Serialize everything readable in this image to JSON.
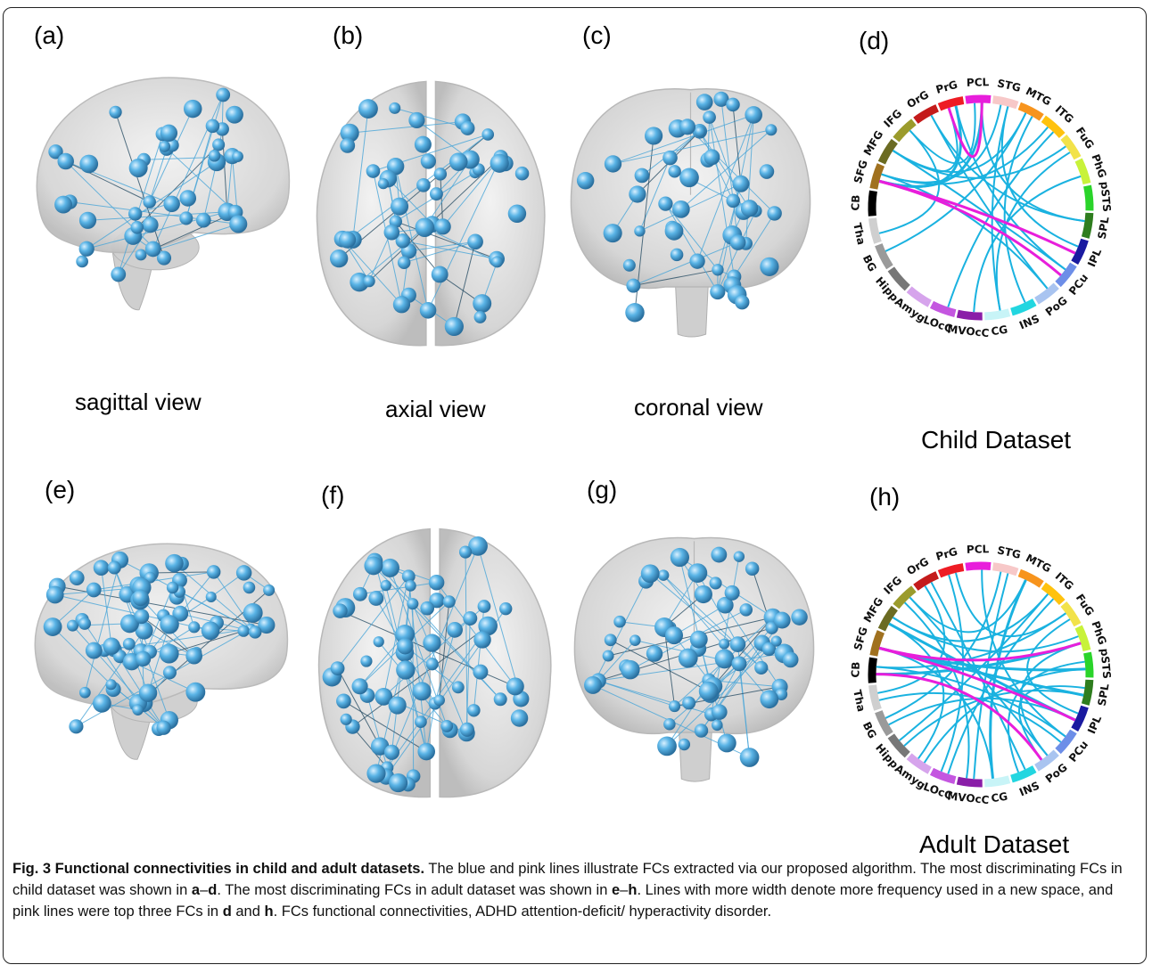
{
  "panels": {
    "a": "(a)",
    "b": "(b)",
    "c": "(c)",
    "d": "(d)",
    "e": "(e)",
    "f": "(f)",
    "g": "(g)",
    "h": "(h)"
  },
  "views": {
    "sagittal": "sagittal view",
    "axial": "axial view",
    "coronal": "coronal view"
  },
  "datasets": {
    "child": "Child Dataset",
    "adult": "Adult Dataset"
  },
  "regions": [
    {
      "label": "SFG",
      "color": "#a0711f"
    },
    {
      "label": "MFG",
      "color": "#6b6b22"
    },
    {
      "label": "IFG",
      "color": "#9b9b2c"
    },
    {
      "label": "OrG",
      "color": "#c41b1b"
    },
    {
      "label": "PrG",
      "color": "#ee1c24"
    },
    {
      "label": "PCL",
      "color": "#e81edb"
    },
    {
      "label": "STG",
      "color": "#f7c8c8"
    },
    {
      "label": "MTG",
      "color": "#f7941d"
    },
    {
      "label": "ITG",
      "color": "#ffc20e"
    },
    {
      "label": "FuG",
      "color": "#f2e24a"
    },
    {
      "label": "PhG",
      "color": "#c8f23a"
    },
    {
      "label": "pSTS",
      "color": "#2ad42a"
    },
    {
      "label": "SPL",
      "color": "#2e7d1e"
    },
    {
      "label": "IPL",
      "color": "#1a1aa0"
    },
    {
      "label": "PCu",
      "color": "#6d8ee8"
    },
    {
      "label": "PoG",
      "color": "#a9c4f0"
    },
    {
      "label": "INS",
      "color": "#22d6e0"
    },
    {
      "label": "CG",
      "color": "#c8f4f7"
    },
    {
      "label": "MVOcC",
      "color": "#8a1ea8"
    },
    {
      "label": "LOcC",
      "color": "#c456e0"
    },
    {
      "label": "Amyg",
      "color": "#d6a4ec"
    },
    {
      "label": "Hipp",
      "color": "#777777"
    },
    {
      "label": "BG",
      "color": "#9a9a9a"
    },
    {
      "label": "Tha",
      "color": "#cfcfcf"
    },
    {
      "label": "CB",
      "color": "#000000"
    }
  ],
  "colors": {
    "fc_blue": "#1ab2e0",
    "fc_pink": "#e81edb",
    "node_blue": "#5ab4e6"
  },
  "caption": {
    "title": "Fig. 3 Functional connectivities in child and adult datasets.",
    "t1": " The blue and pink lines illustrate FCs extracted via our proposed algorithm. The most discriminating FCs in child dataset was shown in ",
    "r1": "a",
    "dash1": "–",
    "r2": "d",
    "t2": ". The most discriminating FCs in adult dataset was shown in ",
    "r3": "e",
    "dash2": "–",
    "r4": "h",
    "t3": ". Lines with more width denote more frequency used in a new space, and pink lines were top three FCs in ",
    "r5": "d",
    "t4": " and ",
    "r6": "h",
    "t5": ". FCs functional connectivities, ADHD attention-deficit/ hyperactivity disorder."
  }
}
